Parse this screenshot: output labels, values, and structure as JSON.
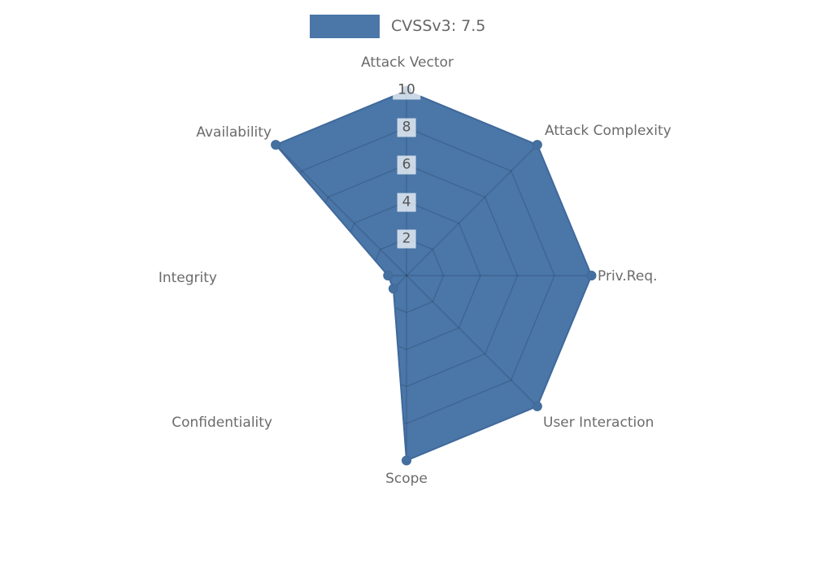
{
  "legend": {
    "label": "CVSSv3: 7.5"
  },
  "chart_data": {
    "type": "radar",
    "title": "CVSSv3: 7.5",
    "categories": [
      "Attack Vector",
      "Attack Complexity",
      "Priv.Req.",
      "User Interaction",
      "Scope",
      "Confidentiality",
      "Integrity",
      "Availability"
    ],
    "series": [
      {
        "name": "CVSSv3: 7.5",
        "values": [
          10,
          10,
          10,
          10,
          10,
          1,
          1,
          10
        ]
      }
    ],
    "rmax": 10,
    "ticks": [
      2,
      4,
      6,
      8,
      10
    ],
    "grid": "polygon-web",
    "legend_position": "top-center",
    "colors": {
      "fill": "#4A76A8",
      "stroke": "#40699B",
      "dot": "#44709F",
      "grid_line": "rgba(0,0,0,0.14)",
      "tick_box": "rgba(255,255,255,0.72)",
      "tick_text": "#555555",
      "label_text": "#6b6b6b",
      "legend_text": "#666666"
    }
  }
}
